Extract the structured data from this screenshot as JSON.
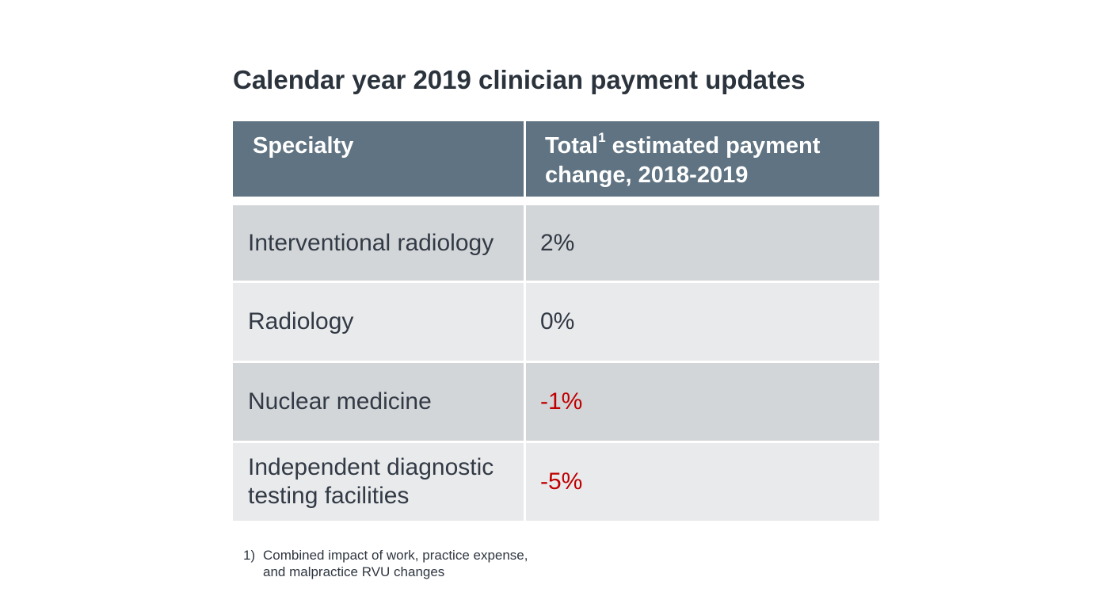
{
  "title": "Calendar year 2019 clinician payment updates",
  "chart_data": {
    "type": "table",
    "title": "Calendar year 2019 clinician payment updates",
    "columns": [
      {
        "label": "Specialty",
        "superscript": ""
      },
      {
        "label": "Total",
        "superscript": "1",
        "label_rest": " estimated payment change, 2018-2019"
      }
    ],
    "rows": [
      {
        "specialty": "Interventional radiology",
        "change": "2%",
        "value": 2
      },
      {
        "specialty": "Radiology",
        "change": "0%",
        "value": 0
      },
      {
        "specialty": "Nuclear medicine",
        "change": "-1%",
        "value": -1
      },
      {
        "specialty": "Independent diagnostic testing facilities",
        "change": "-5%",
        "value": -5
      }
    ],
    "negative_color": "#c00000",
    "header_color": "#5f7382",
    "row_colors": [
      "#d3d6d9",
      "#e9eaec"
    ]
  },
  "footnote": {
    "number": "1)",
    "text": "Combined impact of work, practice expense, and malpractice RVU changes"
  }
}
